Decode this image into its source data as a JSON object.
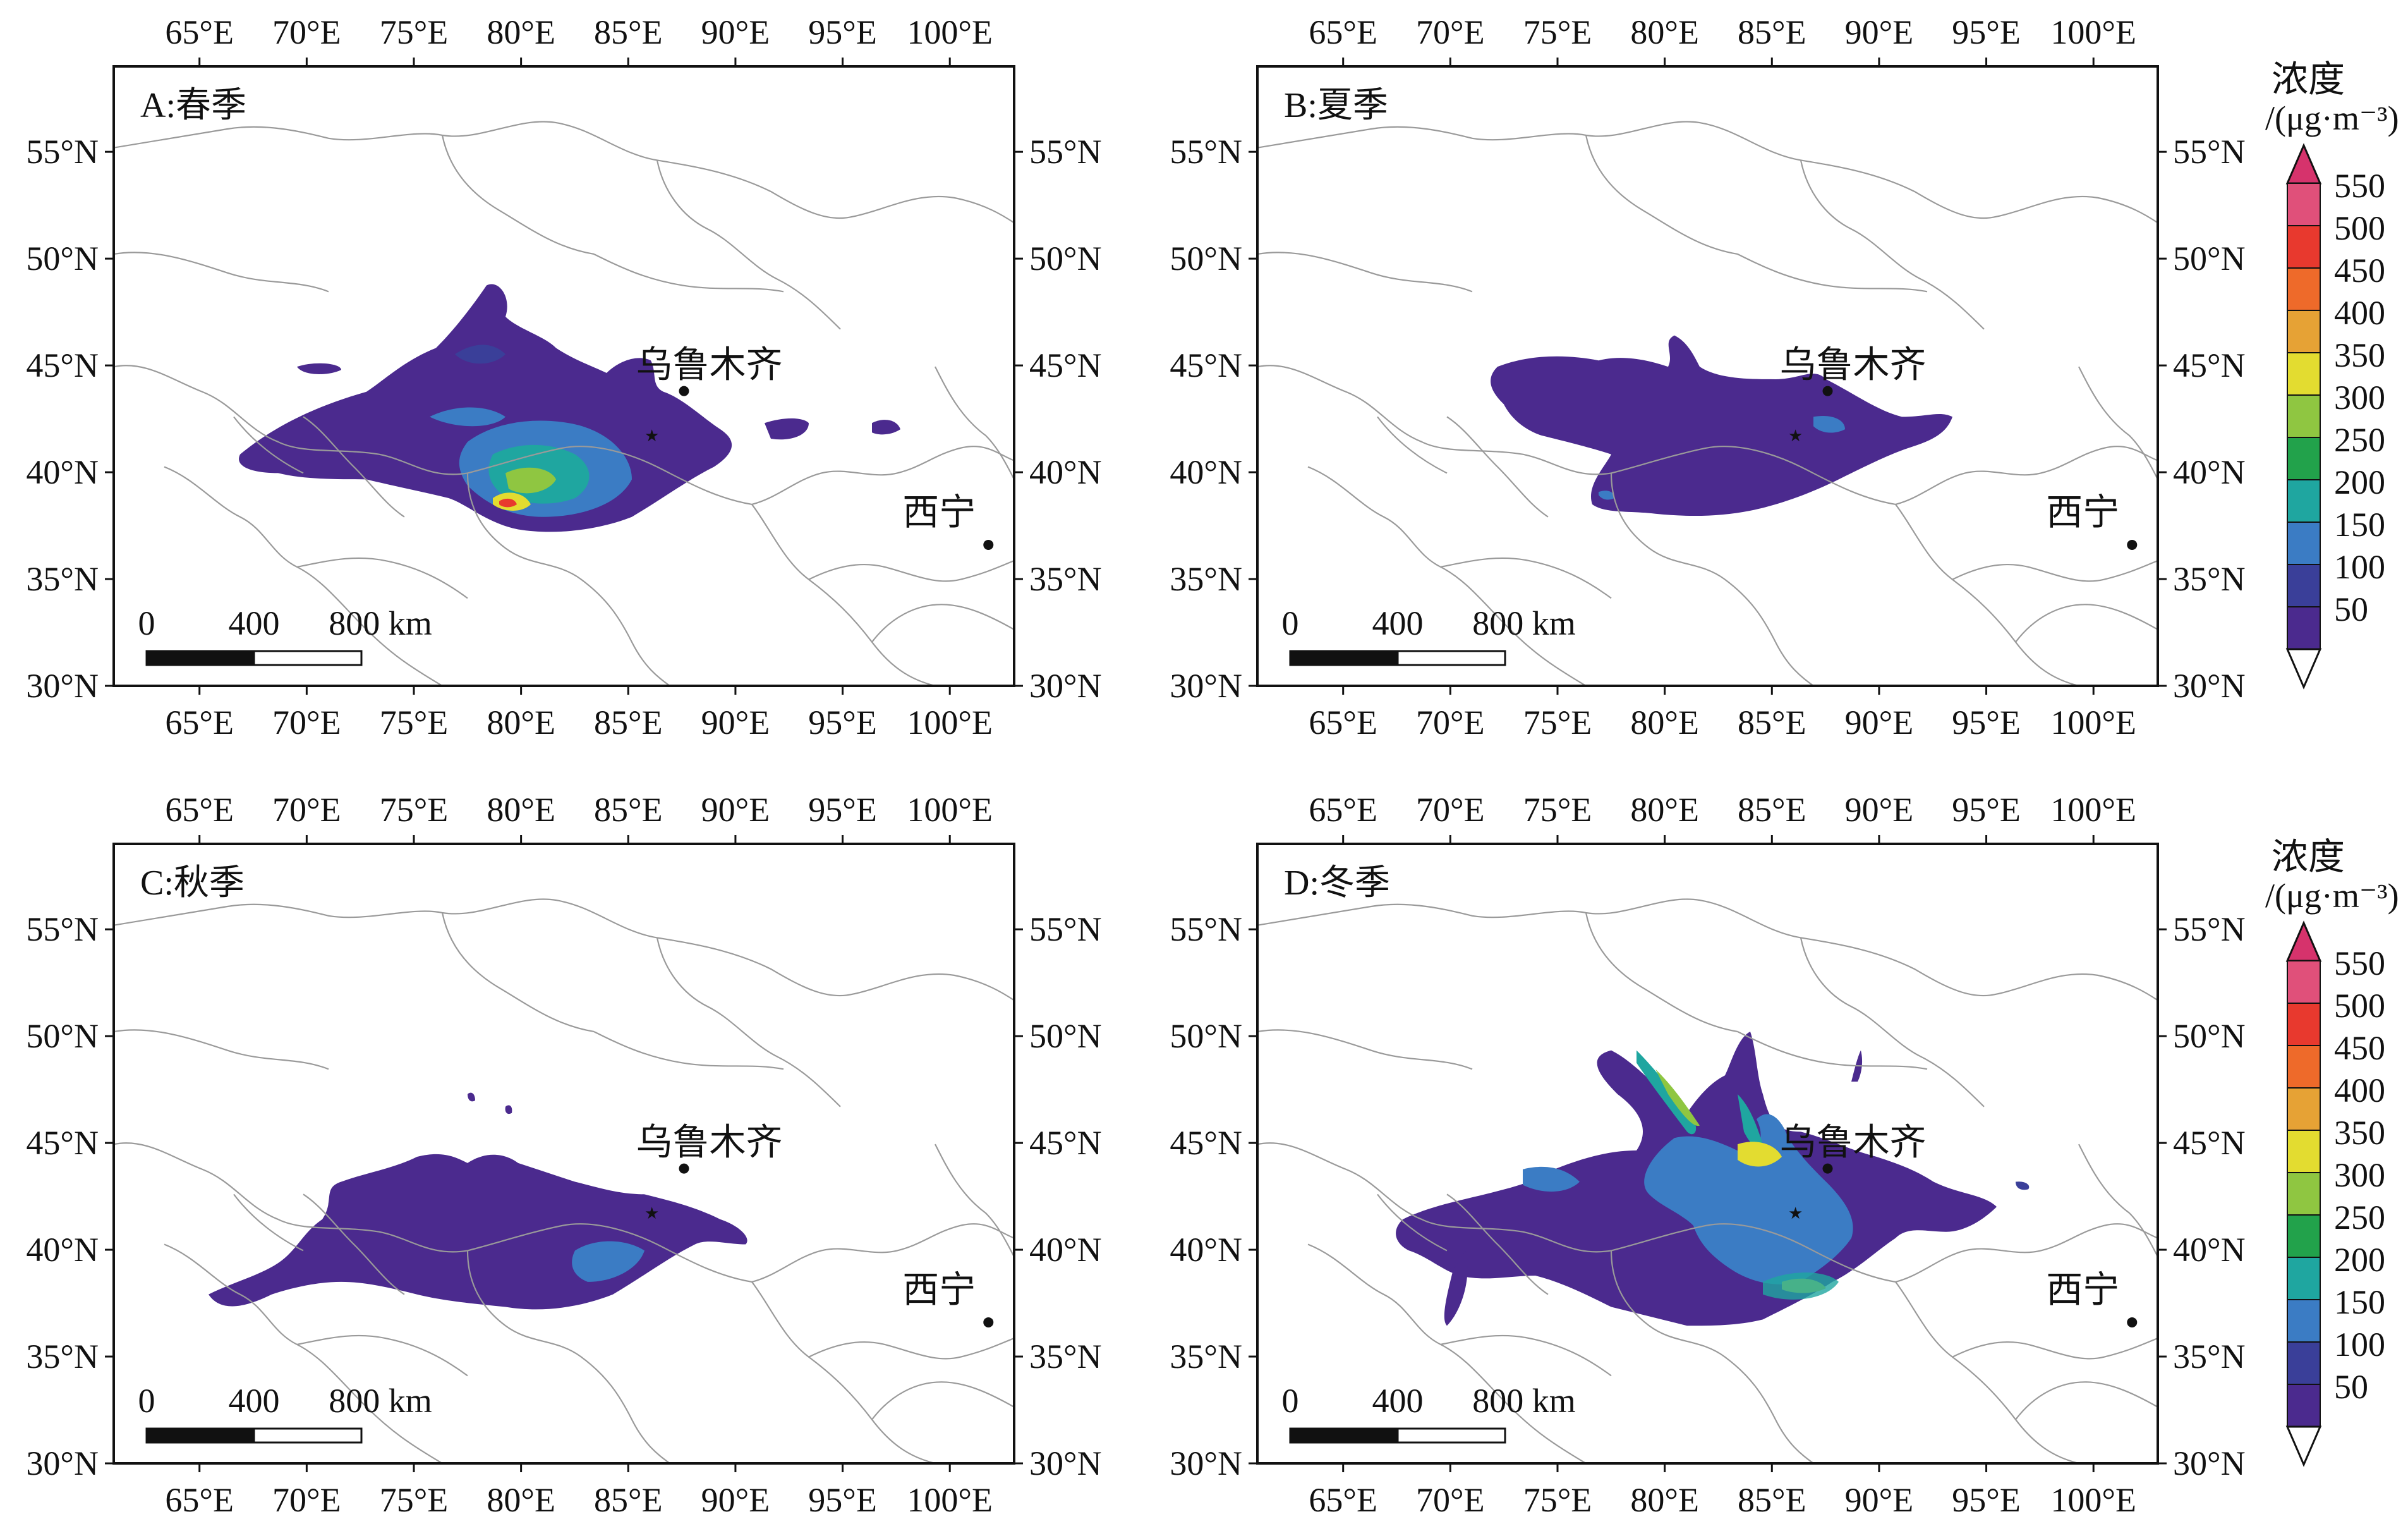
{
  "map": {
    "lon_ticks": [
      "65°E",
      "70°E",
      "75°E",
      "80°E",
      "85°E",
      "90°E",
      "95°E",
      "100°E"
    ],
    "lon_values": [
      65,
      70,
      75,
      80,
      85,
      90,
      95,
      100
    ],
    "lat_ticks": [
      "30°N",
      "35°N",
      "40°N",
      "45°N",
      "50°N",
      "55°N"
    ],
    "lat_values": [
      30,
      35,
      40,
      45,
      50,
      55
    ],
    "lon_range": [
      61,
      103
    ],
    "lat_range": [
      30,
      59
    ],
    "cities": [
      {
        "name": "乌鲁木齐",
        "lon": 87.6,
        "lat": 43.8
      },
      {
        "name": "西宁",
        "lon": 101.8,
        "lat": 36.6
      }
    ],
    "source_star": {
      "lon": 86.1,
      "lat": 41.8
    },
    "scale_bar": {
      "labels": [
        "0",
        "400",
        "800 km"
      ]
    }
  },
  "panels": [
    {
      "id": "A",
      "title": "A:春季"
    },
    {
      "id": "B",
      "title": "B:夏季"
    },
    {
      "id": "C",
      "title": "C:秋季"
    },
    {
      "id": "D",
      "title": "D:冬季"
    }
  ],
  "legend": {
    "title": "浓度",
    "unit": "/(μg·m⁻³)",
    "levels": [
      "550",
      "500",
      "450",
      "400",
      "350",
      "300",
      "250",
      "200",
      "150",
      "100",
      "50"
    ],
    "colors": [
      "#e0507a",
      "#e8392e",
      "#ee6a2a",
      "#e6a235",
      "#e3dc30",
      "#8fc641",
      "#22a24b",
      "#1fa6a0",
      "#3b7cc4",
      "#3a3f99",
      "#4b2a8e"
    ],
    "top_color": "#d6336c",
    "bottom_color": "#ffffff"
  },
  "colors": {
    "c50": "#4b2a8e",
    "c100": "#3a3f99",
    "c150": "#3b7cc4",
    "c200": "#1fa6a0",
    "c250": "#22a24b",
    "c300": "#8fc641",
    "c350": "#e3dc30",
    "c400": "#e6a235",
    "c450": "#ee6a2a",
    "c500": "#e8392e",
    "border": "#9a9a9a"
  }
}
